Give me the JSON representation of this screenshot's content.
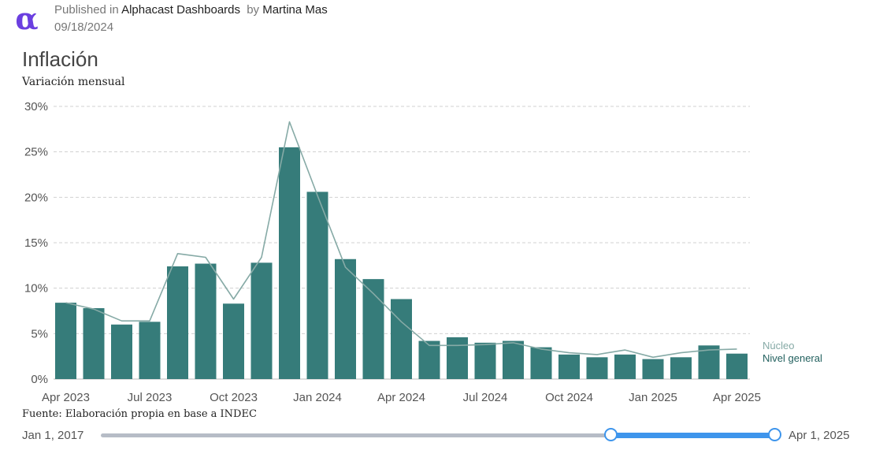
{
  "header": {
    "logo_glyph": "α",
    "published_prefix": "Published in",
    "publication": "Alphacast Dashboards",
    "by_prefix": "by",
    "author": "Martina Mas",
    "date": "09/18/2024"
  },
  "footer": {
    "source": "Fuente: Elaboración propia en base a INDEC"
  },
  "slider": {
    "start_label": "Jan 1, 2017",
    "end_label": "Apr 1, 2025"
  },
  "colors": {
    "bar": "#367c7a",
    "line": "#86aaa6",
    "nucleo_label": "#86aaa6",
    "general_label": "#23615f",
    "grid": "#d0d0d0",
    "accent": "#3e95ec"
  },
  "chart_data": {
    "type": "bar",
    "title": "Inflación",
    "subtitle": "Variación mensual",
    "xlabel": "",
    "ylabel": "",
    "ylim": [
      0,
      30
    ],
    "yticks": [
      0,
      5,
      10,
      15,
      20,
      25,
      30
    ],
    "ytick_labels": [
      "0%",
      "5%",
      "10%",
      "15%",
      "20%",
      "25%",
      "30%"
    ],
    "grid": true,
    "categories": [
      "Apr 2023",
      "May 2023",
      "Jun 2023",
      "Jul 2023",
      "Aug 2023",
      "Sep 2023",
      "Oct 2023",
      "Nov 2023",
      "Dec 2023",
      "Jan 2024",
      "Feb 2024",
      "Mar 2024",
      "Apr 2024",
      "May 2024",
      "Jun 2024",
      "Jul 2024",
      "Aug 2024",
      "Sep 2024",
      "Oct 2024",
      "Nov 2024",
      "Dec 2024",
      "Jan 2025",
      "Feb 2025",
      "Mar 2025",
      "Apr 2025"
    ],
    "xtick_labels": [
      {
        "index": 0,
        "label": "Apr 2023"
      },
      {
        "index": 3,
        "label": "Jul 2023"
      },
      {
        "index": 6,
        "label": "Oct 2023"
      },
      {
        "index": 9,
        "label": "Jan 2024"
      },
      {
        "index": 12,
        "label": "Apr 2024"
      },
      {
        "index": 15,
        "label": "Jul 2024"
      },
      {
        "index": 18,
        "label": "Oct 2024"
      },
      {
        "index": 21,
        "label": "Jan 2025"
      },
      {
        "index": 24,
        "label": "Apr 2025"
      }
    ],
    "series": [
      {
        "name": "Nivel general",
        "kind": "bar",
        "values": [
          8.4,
          7.8,
          6.0,
          6.3,
          12.4,
          12.7,
          8.3,
          12.8,
          25.5,
          20.6,
          13.2,
          11.0,
          8.8,
          4.2,
          4.6,
          4.0,
          4.2,
          3.5,
          2.7,
          2.4,
          2.7,
          2.2,
          2.4,
          3.7,
          2.8
        ]
      },
      {
        "name": "Núcleo",
        "kind": "line",
        "values": [
          8.4,
          7.7,
          6.4,
          6.4,
          13.8,
          13.4,
          8.8,
          13.4,
          28.3,
          20.2,
          12.3,
          9.4,
          6.3,
          3.7,
          3.7,
          3.8,
          4.0,
          3.3,
          2.9,
          2.7,
          3.2,
          2.4,
          2.9,
          3.2,
          3.3
        ]
      }
    ],
    "legend": [
      "Núcleo",
      "Nivel general"
    ],
    "legend_position": "right"
  }
}
